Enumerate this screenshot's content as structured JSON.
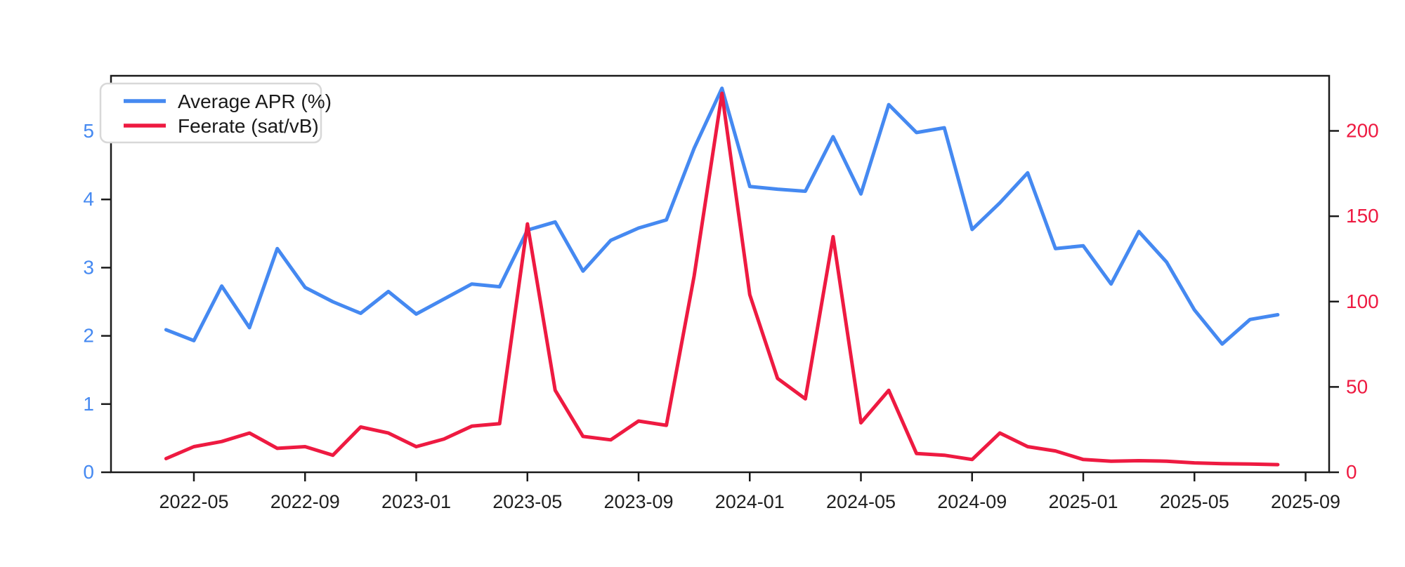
{
  "chart_data": {
    "type": "line",
    "title": "",
    "grid": false,
    "background": "#ffffff",
    "x": [
      "2022-04",
      "2022-05",
      "2022-06",
      "2022-07",
      "2022-08",
      "2022-09",
      "2022-10",
      "2022-11",
      "2022-12",
      "2023-01",
      "2023-02",
      "2023-03",
      "2023-04",
      "2023-05",
      "2023-06",
      "2023-07",
      "2023-08",
      "2023-09",
      "2023-10",
      "2023-11",
      "2023-12",
      "2024-01",
      "2024-02",
      "2024-03",
      "2024-04",
      "2024-05",
      "2024-06",
      "2024-07",
      "2024-08",
      "2024-09",
      "2024-10",
      "2024-11",
      "2024-12",
      "2025-01",
      "2025-02",
      "2025-03",
      "2025-04",
      "2025-05",
      "2025-06",
      "2025-07",
      "2025-08"
    ],
    "series": [
      {
        "name": "Average APR (%)",
        "axis": "left",
        "color": "#4589f1",
        "values": [
          2.09,
          1.93,
          2.73,
          2.12,
          3.28,
          2.71,
          2.5,
          2.33,
          2.65,
          2.32,
          2.54,
          2.76,
          2.72,
          3.55,
          3.67,
          2.95,
          3.4,
          3.58,
          3.7,
          4.75,
          5.63,
          4.19,
          4.15,
          4.12,
          4.92,
          4.08,
          5.39,
          4.98,
          5.05,
          3.56,
          3.95,
          4.39,
          3.28,
          3.32,
          2.76,
          3.53,
          3.08,
          2.38,
          1.88,
          2.24,
          2.31
        ]
      },
      {
        "name": "Feerate (sat/vB)",
        "axis": "right",
        "color": "#ee1a41",
        "values": [
          8,
          15,
          18,
          23,
          14,
          15,
          10,
          26.5,
          23,
          15,
          19.5,
          27,
          28.5,
          145.5,
          48,
          21,
          19,
          30,
          27.5,
          115,
          222,
          104,
          55,
          43,
          138,
          29,
          48,
          11,
          10,
          7.5,
          23,
          15,
          12.5,
          7.5,
          6.5,
          6.8,
          6.5,
          5.5,
          5,
          4.8,
          4.5
        ]
      }
    ],
    "left_axis": {
      "tick_labels": [
        "0",
        "1",
        "2",
        "3",
        "4",
        "5"
      ],
      "ticks": [
        0,
        1,
        2,
        3,
        4,
        5
      ],
      "range": [
        0,
        5.81
      ],
      "color": "#4589f1"
    },
    "right_axis": {
      "tick_labels": [
        "0",
        "50",
        "100",
        "150",
        "200"
      ],
      "ticks": [
        0,
        50,
        100,
        150,
        200
      ],
      "range": [
        0,
        232.3
      ],
      "color": "#ee1a41"
    },
    "x_axis": {
      "tick_labels": [
        "2022-05",
        "2022-09",
        "2023-01",
        "2023-05",
        "2023-09",
        "2024-01",
        "2024-05",
        "2024-09",
        "2025-01",
        "2025-05",
        "2025-09"
      ],
      "color": "#1f1f1f"
    },
    "legend": {
      "position": "upper-left",
      "entries": [
        "Average APR (%)",
        "Feerate (sat/vB)"
      ],
      "border_color": "#d8d8d8",
      "text_color": "#1a1a1a"
    }
  },
  "layout_colors": {
    "spine": "#1a1a1a"
  }
}
